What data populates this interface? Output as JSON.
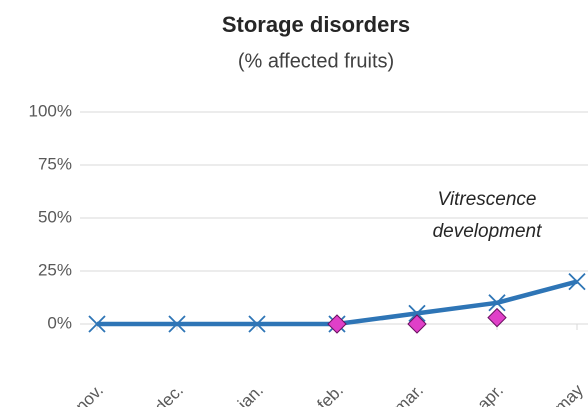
{
  "chart_data": {
    "type": "line",
    "title": "Storage disorders",
    "subtitle": "(% affected fruits)",
    "annotation": [
      "Vitrescence",
      "development"
    ],
    "categories": [
      "nov.",
      "dec.",
      "jan.",
      "feb.",
      "mar.",
      "apr.",
      "may"
    ],
    "series": [
      {
        "color": "#2e75b6",
        "marker": "x",
        "values": [
          0,
          0,
          0,
          0,
          5,
          10,
          20
        ]
      },
      {
        "color": "#e040c8",
        "marker": "diamond",
        "line": false,
        "values": [
          null,
          null,
          null,
          0,
          0,
          3,
          null
        ]
      }
    ],
    "ylim": [
      0,
      100
    ],
    "yticks": [
      {
        "value": 0,
        "label": "0%"
      },
      {
        "value": 25,
        "label": "25%"
      },
      {
        "value": 50,
        "label": "50%"
      },
      {
        "value": 75,
        "label": "75%"
      },
      {
        "value": 100,
        "label": "100%"
      }
    ],
    "grid": true
  }
}
